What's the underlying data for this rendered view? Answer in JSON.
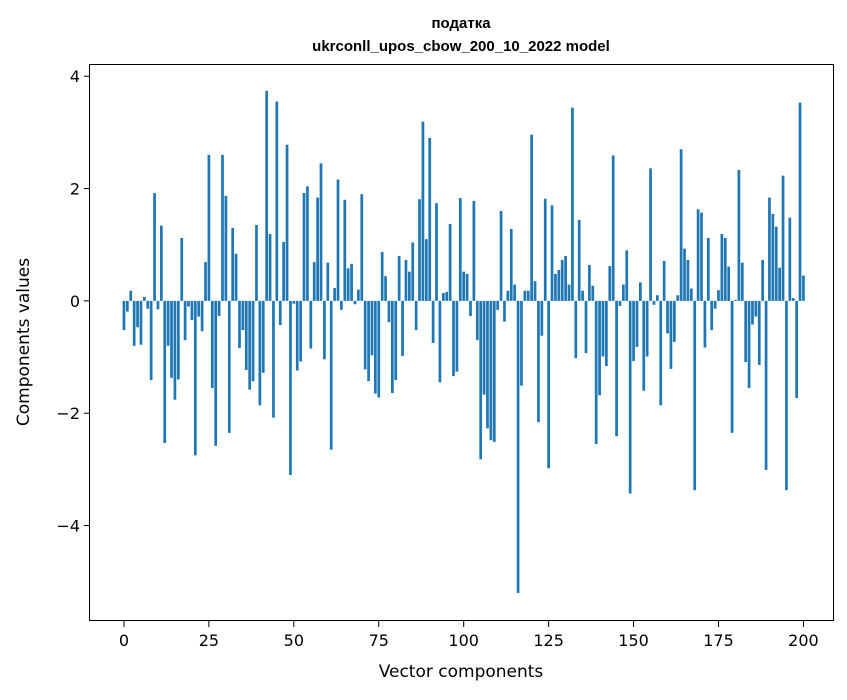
{
  "chart_data": {
    "type": "bar",
    "title_line1": "податка",
    "title_line2": "ukrconll_upos_cbow_200_10_2022 model",
    "xlabel": "Vector components",
    "ylabel": "Components values",
    "xlim": [
      -10,
      209
    ],
    "ylim": [
      -5.7,
      4.2
    ],
    "xticks": [
      0,
      25,
      50,
      75,
      100,
      125,
      150,
      175,
      200
    ],
    "yticks": [
      -4,
      -2,
      0,
      2,
      4
    ],
    "ytick_labels": [
      "−4",
      "−2",
      "0",
      "2",
      "4"
    ],
    "grid": false,
    "bar_color": "#1f77b4",
    "values": [
      -0.52,
      -0.19,
      0.18,
      -0.8,
      -0.47,
      -0.78,
      0.07,
      -0.14,
      -1.41,
      1.92,
      -0.15,
      1.34,
      -2.53,
      -0.8,
      -1.37,
      -1.76,
      -1.4,
      1.12,
      -0.7,
      -0.1,
      -0.34,
      -2.75,
      -0.28,
      -0.54,
      0.69,
      2.6,
      -1.55,
      -2.58,
      -0.27,
      2.6,
      1.87,
      -2.35,
      1.3,
      0.84,
      -0.84,
      -0.52,
      -1.23,
      -1.58,
      -1.43,
      1.35,
      -1.86,
      -1.28,
      3.74,
      1.19,
      -2.08,
      3.55,
      -0.43,
      1.05,
      2.78,
      -3.1,
      -0.05,
      -1.24,
      -1.08,
      1.92,
      2.04,
      -0.85,
      0.69,
      1.84,
      2.45,
      -1.04,
      0.68,
      -2.65,
      0.23,
      2.16,
      -0.16,
      1.8,
      0.58,
      0.66,
      -0.06,
      0.2,
      1.9,
      -1.22,
      -1.43,
      -0.97,
      -1.65,
      -1.72,
      0.87,
      0.44,
      -0.38,
      -1.64,
      -1.41,
      0.8,
      -0.98,
      0.73,
      0.52,
      1.04,
      -0.52,
      1.81,
      3.19,
      1.1,
      2.9,
      -0.75,
      1.74,
      -1.45,
      0.14,
      0.16,
      1.37,
      -1.34,
      -1.26,
      1.83,
      0.52,
      0.48,
      -0.27,
      1.78,
      -0.7,
      -2.82,
      -1.67,
      -2.27,
      -2.48,
      -2.51,
      -0.16,
      1.6,
      -0.37,
      0.18,
      1.28,
      0.29,
      -5.2,
      -1.51,
      0.18,
      0.18,
      2.96,
      0.35,
      -2.16,
      -0.62,
      1.82,
      -2.98,
      1.7,
      0.48,
      0.55,
      0.73,
      0.8,
      0.29,
      3.44,
      -1.02,
      1.44,
      0.18,
      -0.93,
      0.64,
      0.27,
      -2.55,
      -1.68,
      -0.99,
      -1.16,
      0.62,
      2.59,
      -2.41,
      -0.09,
      0.29,
      0.9,
      -3.43,
      -1.07,
      -0.82,
      0.33,
      -1.6,
      -0.99,
      2.36,
      -0.07,
      0.1,
      -1.86,
      0.71,
      -0.58,
      -1.21,
      -0.73,
      0.1,
      2.7,
      0.93,
      0.73,
      0.22,
      -3.37,
      1.63,
      1.57,
      -0.83,
      1.12,
      -0.52,
      -0.14,
      0.19,
      1.19,
      1.12,
      0.61,
      -2.35,
      0.02,
      2.33,
      0.68,
      -1.09,
      -1.55,
      -0.42,
      -0.28,
      -1.14,
      0.73,
      -3.01,
      1.84,
      1.55,
      1.32,
      0.59,
      2.23,
      -3.37,
      1.48,
      0.05,
      -1.73,
      3.53,
      0.45
    ]
  }
}
